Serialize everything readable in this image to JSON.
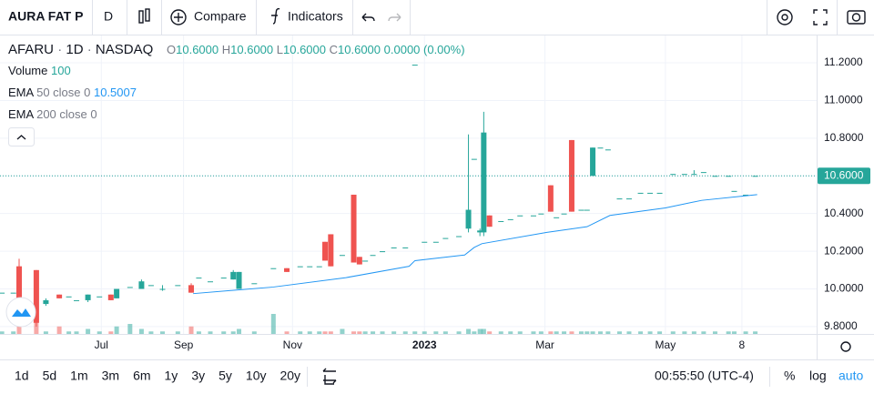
{
  "toolbar": {
    "symbol": "AURA FAT P",
    "interval": "D",
    "compare": "Compare",
    "indicators": "Indicators"
  },
  "legend": {
    "ticker": "AFARU",
    "sep1": "·",
    "interval": "1D",
    "sep2": "·",
    "exchange": "NASDAQ",
    "o_label": "O",
    "o": "10.6000",
    "h_label": "H",
    "h": "10.6000",
    "l_label": "L",
    "l": "10.6000",
    "c_label": "C",
    "c": "10.6000",
    "change": "0.0000 (0.00%)",
    "volume_label": "Volume",
    "volume_setting": "100",
    "ema50_label": "EMA",
    "ema50_setting": "50 close 0",
    "ema50_value": "10.5007",
    "ema200_label": "EMA",
    "ema200_setting": "200 close 0"
  },
  "bottom_bar": {
    "ranges": [
      "1d",
      "5d",
      "1m",
      "3m",
      "6m",
      "1y",
      "3y",
      "5y",
      "10y",
      "20y"
    ],
    "clock": "00:55:50 (UTC-4)",
    "percent": "%",
    "log": "log",
    "auto": "auto"
  },
  "chart_data": {
    "type": "candlestick",
    "up_color": "#26a69a",
    "down_color": "#ef5350",
    "ema_color": "#2196f3",
    "xlim": [
      0,
      427.1
    ],
    "ylim": [
      9.761,
      11.345
    ],
    "xticks": [
      {
        "value": 53,
        "label": "Jul"
      },
      {
        "value": 96,
        "label": "Sep"
      },
      {
        "value": 153,
        "label": "Nov"
      },
      {
        "value": 222,
        "label": "2023"
      },
      {
        "value": 285,
        "label": "Mar"
      },
      {
        "value": 348,
        "label": "May"
      },
      {
        "value": 388,
        "label": "8"
      }
    ],
    "yticks": [
      {
        "value": 9.8,
        "label": "9.8000"
      },
      {
        "value": 10,
        "label": "10.0000"
      },
      {
        "value": 10.2,
        "label": "10.2000"
      },
      {
        "value": 10.4,
        "label": "10.4000"
      },
      {
        "value": 10.6,
        "label": "10.6000"
      },
      {
        "value": 10.8,
        "label": "10.8000"
      },
      {
        "value": 11,
        "label": "11.0000"
      },
      {
        "value": 11.2,
        "label": "11.2000"
      }
    ],
    "grid": true,
    "last_price": {
      "value": 10.6,
      "label": "10.6000"
    },
    "candles": [
      {
        "x": 1,
        "o": 9.98,
        "h": 9.98,
        "l": 9.98,
        "c": 9.98,
        "v": 1
      },
      {
        "x": 7,
        "o": 9.98,
        "h": 9.98,
        "l": 9.98,
        "c": 9.98,
        "v": 1
      },
      {
        "x": 10,
        "o": 10.12,
        "h": 10.16,
        "l": 9.82,
        "c": 9.86,
        "v": 6
      },
      {
        "x": 19,
        "o": 10.1,
        "h": 10.1,
        "l": 9.8,
        "c": 9.82,
        "v": 5
      },
      {
        "x": 24,
        "o": 9.92,
        "h": 9.95,
        "l": 9.91,
        "c": 9.94,
        "v": 1
      },
      {
        "x": 31,
        "o": 9.97,
        "h": 9.97,
        "l": 9.95,
        "c": 9.95,
        "v": 3
      },
      {
        "x": 36,
        "o": 9.96,
        "h": 9.96,
        "l": 9.96,
        "c": 9.96,
        "v": 1
      },
      {
        "x": 40,
        "o": 9.94,
        "h": 9.94,
        "l": 9.94,
        "c": 9.94,
        "v": 1
      },
      {
        "x": 46,
        "o": 9.94,
        "h": 9.97,
        "l": 9.93,
        "c": 9.97,
        "v": 2
      },
      {
        "x": 52,
        "o": 9.96,
        "h": 9.96,
        "l": 9.96,
        "c": 9.96,
        "v": 1
      },
      {
        "x": 58,
        "o": 9.97,
        "h": 9.97,
        "l": 9.94,
        "c": 9.94,
        "v": 1
      },
      {
        "x": 61,
        "o": 9.95,
        "h": 10.0,
        "l": 9.95,
        "c": 10.0,
        "v": 3
      },
      {
        "x": 68,
        "o": 10.01,
        "h": 10.01,
        "l": 10.01,
        "c": 10.01,
        "v": 4
      },
      {
        "x": 74,
        "o": 10.0,
        "h": 10.05,
        "l": 10.0,
        "c": 10.04,
        "v": 2
      },
      {
        "x": 79,
        "o": 10.02,
        "h": 10.02,
        "l": 10.02,
        "c": 10.02,
        "v": 1
      },
      {
        "x": 85,
        "o": 10.0,
        "h": 10.02,
        "l": 9.99,
        "c": 10.0,
        "v": 1
      },
      {
        "x": 93,
        "o": 10.02,
        "h": 10.02,
        "l": 10.02,
        "c": 10.02,
        "v": 1
      },
      {
        "x": 100,
        "o": 10.02,
        "h": 10.03,
        "l": 9.98,
        "c": 9.98,
        "v": 3
      },
      {
        "x": 104,
        "o": 10.06,
        "h": 10.06,
        "l": 10.06,
        "c": 10.06,
        "v": 1
      },
      {
        "x": 110,
        "o": 10.04,
        "h": 10.04,
        "l": 10.04,
        "c": 10.04,
        "v": 1
      },
      {
        "x": 117,
        "o": 10.06,
        "h": 10.06,
        "l": 10.06,
        "c": 10.06,
        "v": 1
      },
      {
        "x": 122,
        "o": 10.05,
        "h": 10.1,
        "l": 10.05,
        "c": 10.09,
        "v": 1
      },
      {
        "x": 125,
        "o": 10.0,
        "h": 10.09,
        "l": 10.0,
        "c": 10.09,
        "v": 2
      },
      {
        "x": 133,
        "o": 10.03,
        "h": 10.03,
        "l": 10.03,
        "c": 10.03,
        "v": 1
      },
      {
        "x": 143,
        "o": 10.11,
        "h": 10.11,
        "l": 10.11,
        "c": 10.11,
        "v": 8
      },
      {
        "x": 150,
        "o": 10.11,
        "h": 10.11,
        "l": 10.09,
        "c": 10.09,
        "v": 1
      },
      {
        "x": 157,
        "o": 10.12,
        "h": 10.12,
        "l": 10.12,
        "c": 10.12,
        "v": 1
      },
      {
        "x": 162,
        "o": 10.12,
        "h": 10.12,
        "l": 10.12,
        "c": 10.12,
        "v": 1
      },
      {
        "x": 167,
        "o": 10.12,
        "h": 10.12,
        "l": 10.12,
        "c": 10.12,
        "v": 1
      },
      {
        "x": 170,
        "o": 10.25,
        "h": 10.25,
        "l": 10.15,
        "c": 10.15,
        "v": 1
      },
      {
        "x": 173,
        "o": 10.29,
        "h": 10.29,
        "l": 10.12,
        "c": 10.12,
        "v": 1
      },
      {
        "x": 179,
        "o": 10.18,
        "h": 10.18,
        "l": 10.18,
        "c": 10.18,
        "v": 2
      },
      {
        "x": 185,
        "o": 10.5,
        "h": 10.5,
        "l": 10.14,
        "c": 10.14,
        "v": 1
      },
      {
        "x": 188,
        "o": 10.17,
        "h": 10.17,
        "l": 10.13,
        "c": 10.13,
        "v": 1
      },
      {
        "x": 191,
        "o": 10.15,
        "h": 10.15,
        "l": 10.15,
        "c": 10.15,
        "v": 1
      },
      {
        "x": 195,
        "o": 10.18,
        "h": 10.18,
        "l": 10.18,
        "c": 10.18,
        "v": 1
      },
      {
        "x": 200,
        "o": 10.2,
        "h": 10.2,
        "l": 10.2,
        "c": 10.2,
        "v": 1
      },
      {
        "x": 206,
        "o": 10.22,
        "h": 10.22,
        "l": 10.22,
        "c": 10.22,
        "v": 1
      },
      {
        "x": 212,
        "o": 10.22,
        "h": 10.22,
        "l": 10.22,
        "c": 10.22,
        "v": 1
      },
      {
        "x": 217,
        "o": 11.19,
        "h": 11.19,
        "l": 11.19,
        "c": 11.19,
        "v": 1
      },
      {
        "x": 222,
        "o": 10.25,
        "h": 10.25,
        "l": 10.25,
        "c": 10.25,
        "v": 1
      },
      {
        "x": 228,
        "o": 10.25,
        "h": 10.25,
        "l": 10.25,
        "c": 10.25,
        "v": 1
      },
      {
        "x": 233,
        "o": 10.27,
        "h": 10.27,
        "l": 10.27,
        "c": 10.27,
        "v": 1
      },
      {
        "x": 240,
        "o": 10.28,
        "h": 10.28,
        "l": 10.28,
        "c": 10.28,
        "v": 1
      },
      {
        "x": 245,
        "o": 10.32,
        "h": 10.82,
        "l": 10.3,
        "c": 10.42,
        "v": 2
      },
      {
        "x": 248,
        "o": 10.69,
        "h": 10.69,
        "l": 10.69,
        "c": 10.69,
        "v": 1
      },
      {
        "x": 251,
        "o": 10.3,
        "h": 10.32,
        "l": 10.28,
        "c": 10.31,
        "v": 2
      },
      {
        "x": 253,
        "o": 10.3,
        "h": 10.94,
        "l": 10.28,
        "c": 10.83,
        "v": 2
      },
      {
        "x": 256,
        "o": 10.39,
        "h": 10.39,
        "l": 10.33,
        "c": 10.33,
        "v": 1
      },
      {
        "x": 262,
        "o": 10.36,
        "h": 10.36,
        "l": 10.36,
        "c": 10.36,
        "v": 1
      },
      {
        "x": 267,
        "o": 10.37,
        "h": 10.37,
        "l": 10.37,
        "c": 10.37,
        "v": 1
      },
      {
        "x": 272,
        "o": 10.39,
        "h": 10.39,
        "l": 10.39,
        "c": 10.39,
        "v": 1
      },
      {
        "x": 279,
        "o": 10.39,
        "h": 10.39,
        "l": 10.39,
        "c": 10.39,
        "v": 1
      },
      {
        "x": 283,
        "o": 10.4,
        "h": 10.4,
        "l": 10.4,
        "c": 10.4,
        "v": 1
      },
      {
        "x": 288,
        "o": 10.55,
        "h": 10.55,
        "l": 10.41,
        "c": 10.41,
        "v": 1
      },
      {
        "x": 291,
        "o": 10.38,
        "h": 10.38,
        "l": 10.38,
        "c": 10.38,
        "v": 1
      },
      {
        "x": 295,
        "o": 10.4,
        "h": 10.4,
        "l": 10.4,
        "c": 10.4,
        "v": 1
      },
      {
        "x": 299,
        "o": 10.79,
        "h": 10.79,
        "l": 10.41,
        "c": 10.41,
        "v": 1
      },
      {
        "x": 304,
        "o": 10.42,
        "h": 10.42,
        "l": 10.42,
        "c": 10.42,
        "v": 1
      },
      {
        "x": 307,
        "o": 10.42,
        "h": 10.42,
        "l": 10.42,
        "c": 10.42,
        "v": 1
      },
      {
        "x": 310,
        "o": 10.6,
        "h": 10.75,
        "l": 10.6,
        "c": 10.75,
        "v": 1
      },
      {
        "x": 314,
        "o": 10.75,
        "h": 10.75,
        "l": 10.75,
        "c": 10.75,
        "v": 1
      },
      {
        "x": 318,
        "o": 10.74,
        "h": 10.74,
        "l": 10.74,
        "c": 10.74,
        "v": 1
      },
      {
        "x": 324,
        "o": 10.48,
        "h": 10.48,
        "l": 10.48,
        "c": 10.48,
        "v": 1
      },
      {
        "x": 329,
        "o": 10.48,
        "h": 10.48,
        "l": 10.48,
        "c": 10.48,
        "v": 1
      },
      {
        "x": 335,
        "o": 10.51,
        "h": 10.51,
        "l": 10.51,
        "c": 10.51,
        "v": 1
      },
      {
        "x": 340,
        "o": 10.51,
        "h": 10.51,
        "l": 10.51,
        "c": 10.51,
        "v": 1
      },
      {
        "x": 345,
        "o": 10.51,
        "h": 10.51,
        "l": 10.51,
        "c": 10.51,
        "v": 1
      },
      {
        "x": 352,
        "o": 10.61,
        "h": 10.61,
        "l": 10.61,
        "c": 10.61,
        "v": 1
      },
      {
        "x": 358,
        "o": 10.61,
        "h": 10.61,
        "l": 10.61,
        "c": 10.61,
        "v": 1
      },
      {
        "x": 363,
        "o": 10.61,
        "h": 10.63,
        "l": 10.61,
        "c": 10.61,
        "v": 1
      },
      {
        "x": 368,
        "o": 10.62,
        "h": 10.62,
        "l": 10.62,
        "c": 10.62,
        "v": 1
      },
      {
        "x": 374,
        "o": 10.6,
        "h": 10.6,
        "l": 10.6,
        "c": 10.6,
        "v": 1
      },
      {
        "x": 381,
        "o": 10.6,
        "h": 10.6,
        "l": 10.6,
        "c": 10.6,
        "v": 1
      },
      {
        "x": 384,
        "o": 10.52,
        "h": 10.52,
        "l": 10.52,
        "c": 10.52,
        "v": 1
      },
      {
        "x": 390,
        "o": 10.5,
        "h": 10.5,
        "l": 10.5,
        "c": 10.5,
        "v": 1
      },
      {
        "x": 395,
        "o": 10.6,
        "h": 10.6,
        "l": 10.6,
        "c": 10.6,
        "v": 1
      }
    ],
    "ema_x": [
      101,
      143,
      181,
      214,
      217,
      243,
      248,
      252,
      286,
      307,
      319,
      348,
      367,
      396
    ],
    "ema": [
      9.975,
      10.01,
      10.06,
      10.12,
      10.15,
      10.18,
      10.22,
      10.24,
      10.3,
      10.33,
      10.39,
      10.43,
      10.47,
      10.5007
    ]
  }
}
